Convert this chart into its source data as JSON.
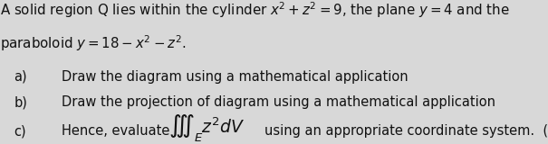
{
  "background_color": "#d8d8d8",
  "title_line1": "A solid region Q lies within the cylinder $x^2 + z^2 = 9$, the plane $y = 4$ and the",
  "title_line2": "paraboloid $y = 18 - x^2 - z^2$.",
  "item_a_label": "a)",
  "item_b_label": "b)",
  "item_c_label": "c)",
  "item_a_text": "Draw the diagram using a mathematical application",
  "item_b_text": "Draw the projection of diagram using a mathematical application",
  "item_c_prefix": "Hence, evaluate",
  "item_c_integral": "$\\iiint_E z^2dV$",
  "item_c_suffix": "using an appropriate coordinate system.  (",
  "text_color": "#111111",
  "fs_title": 10.8,
  "fs_items": 10.5
}
